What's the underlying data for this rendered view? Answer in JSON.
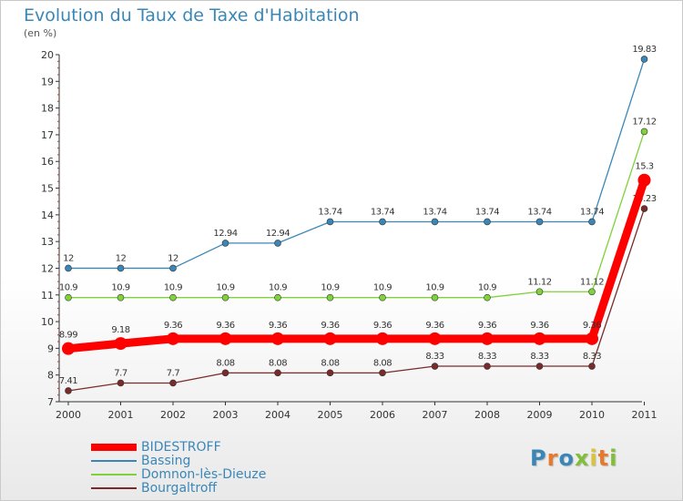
{
  "chart": {
    "title": "Evolution du Taux de Taxe d'Habitation",
    "subtitle": "(en %)"
  },
  "chart_data": {
    "type": "line",
    "title": "Evolution du Taux de Taxe d'Habitation",
    "subtitle": "(en %)",
    "x": [
      "2000",
      "2001",
      "2002",
      "2003",
      "2004",
      "2005",
      "2006",
      "2007",
      "2008",
      "2009",
      "2010",
      "2011"
    ],
    "ylim": [
      7,
      20
    ],
    "yticks": [
      "7",
      "8",
      "9",
      "10",
      "11",
      "12",
      "13",
      "14",
      "15",
      "16",
      "17",
      "18",
      "19",
      "20"
    ],
    "grid": false,
    "legend_position": "bottom-left",
    "series": [
      {
        "name": "BIDESTROFF",
        "color": "#ff0000",
        "emphasis": true,
        "values": [
          8.99,
          9.18,
          9.36,
          9.36,
          9.36,
          9.36,
          9.36,
          9.36,
          9.36,
          9.36,
          9.36,
          15.3
        ],
        "labels": [
          "8.99",
          "9.18",
          "9.36",
          "9.36",
          "9.36",
          "9.36",
          "9.36",
          "9.36",
          "9.36",
          "9.36",
          "9.36",
          "15.3"
        ]
      },
      {
        "name": "Bassing",
        "color": "#3a87b7",
        "values": [
          12,
          12,
          12,
          12.94,
          12.94,
          13.74,
          13.74,
          13.74,
          13.74,
          13.74,
          13.74,
          19.83
        ],
        "labels": [
          "12",
          "12",
          "12",
          "12.94",
          "12.94",
          "13.74",
          "13.74",
          "13.74",
          "13.74",
          "13.74",
          "13.74",
          "19.83"
        ]
      },
      {
        "name": "Domnon-lès-Dieuze",
        "color": "#7fd23a",
        "values": [
          10.9,
          10.9,
          10.9,
          10.9,
          10.9,
          10.9,
          10.9,
          10.9,
          10.9,
          11.12,
          11.12,
          17.12
        ],
        "labels": [
          "10.9",
          "10.9",
          "10.9",
          "10.9",
          "10.9",
          "10.9",
          "10.9",
          "10.9",
          "10.9",
          "11.12",
          "11.12",
          "17.12"
        ]
      },
      {
        "name": "Bourgaltroff",
        "color": "#7a2a2a",
        "values": [
          7.41,
          7.7,
          7.7,
          8.08,
          8.08,
          8.08,
          8.08,
          8.33,
          8.33,
          8.33,
          8.33,
          14.23
        ],
        "labels": [
          "7.41",
          "7.7",
          "7.7",
          "8.08",
          "8.08",
          "8.08",
          "8.08",
          "8.33",
          "8.33",
          "8.33",
          "8.33",
          "14.23"
        ]
      }
    ]
  },
  "logo": {
    "text": "Proxiti",
    "colors": [
      "#3a87b7",
      "#e8792b",
      "#3a87b7",
      "#7fbf3a",
      "#d8c43a",
      "#e8792b",
      "#7fbf3a"
    ]
  }
}
